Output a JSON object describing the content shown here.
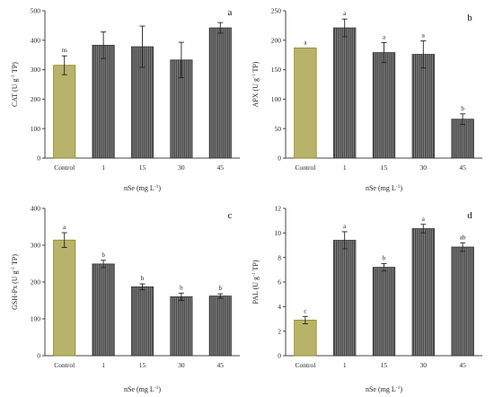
{
  "chart_data": [
    {
      "panel": "a",
      "type": "bar",
      "categories": [
        "Control",
        "1",
        "15",
        "30",
        "45"
      ],
      "values": [
        315,
        383,
        378,
        333,
        442
      ],
      "errors": [
        32,
        45,
        70,
        60,
        18
      ],
      "letters": [
        "ns",
        "",
        "",
        "",
        ""
      ],
      "ylabel": "CAT (U g",
      "ylabel_sup": "-1",
      "ylabel_end": " TP)",
      "xlabel": "nSe (mg L",
      "xlabel_sup": "-1",
      "xlabel_end": ")",
      "ylim": [
        0,
        500
      ],
      "yticks": [
        0,
        100,
        200,
        300,
        400,
        500
      ]
    },
    {
      "panel": "b",
      "type": "bar",
      "categories": [
        "Control",
        "1",
        "15",
        "30",
        "45"
      ],
      "values": [
        187,
        221,
        179,
        176,
        66
      ],
      "errors": [
        0,
        15,
        17,
        23,
        9
      ],
      "letters": [
        "a",
        "a",
        "a",
        "a",
        "b"
      ],
      "ylabel": "APX (U g",
      "ylabel_sup": "-1",
      "ylabel_end": " TP)",
      "xlabel": "nSe (mg L",
      "xlabel_sup": "-1",
      "xlabel_end": ")",
      "ylim": [
        0,
        250
      ],
      "yticks": [
        0,
        50,
        100,
        150,
        200,
        250
      ]
    },
    {
      "panel": "c",
      "type": "bar",
      "categories": [
        "Control",
        "1",
        "15",
        "30",
        "45"
      ],
      "values": [
        314,
        249,
        187,
        160,
        162
      ],
      "errors": [
        20,
        10,
        8,
        10,
        6
      ],
      "letters": [
        "a",
        "b",
        "b",
        "b",
        "b"
      ],
      "ylabel": "GSH-Px (U g",
      "ylabel_sup": "-1",
      "ylabel_end": " TP)",
      "xlabel": "nSe (mg L",
      "xlabel_sup": "-1",
      "xlabel_end": ")",
      "ylim": [
        0,
        400
      ],
      "yticks": [
        0,
        100,
        200,
        300,
        400
      ]
    },
    {
      "panel": "d",
      "type": "bar",
      "categories": [
        "Control",
        "1",
        "15",
        "30",
        "45"
      ],
      "values": [
        2.9,
        9.4,
        7.2,
        10.35,
        8.85
      ],
      "errors": [
        0.3,
        0.7,
        0.3,
        0.35,
        0.35
      ],
      "letters": [
        "c",
        "a",
        "b",
        "a",
        "ab"
      ],
      "ylabel": "PAL (U g",
      "ylabel_sup": "-1",
      "ylabel_end": " TP)",
      "xlabel": "nSe (mg L",
      "xlabel_sup": "-1",
      "xlabel_end": ")",
      "ylim": [
        0,
        12
      ],
      "yticks": [
        0,
        2,
        4,
        6,
        8,
        10,
        12
      ]
    }
  ],
  "colors": {
    "control_fill": "#b8b36a",
    "control_stroke": "#8a8a1a",
    "bar_fill": "#6e6e6e",
    "bar_stripe": "#3a3a3a",
    "axis": "#444444"
  }
}
